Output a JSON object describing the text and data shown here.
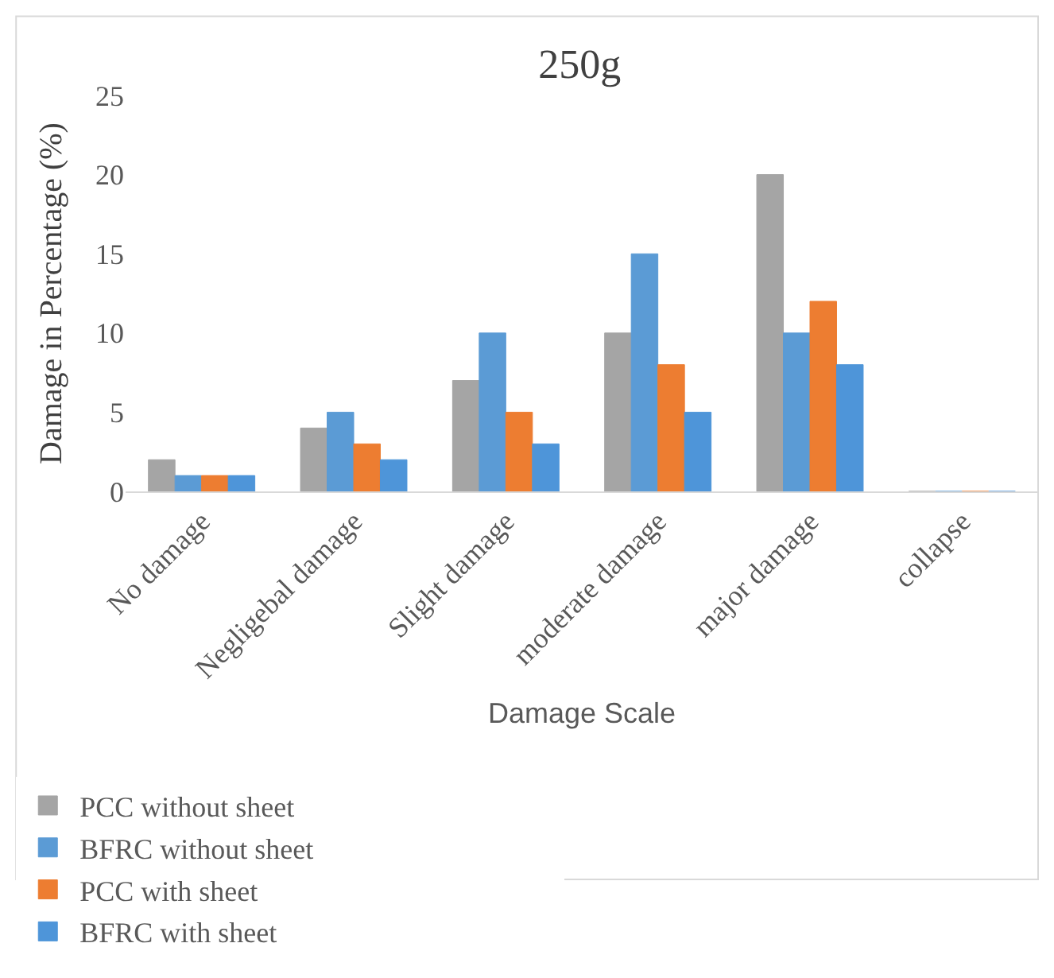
{
  "chart_data": {
    "type": "bar",
    "title": "250g",
    "xlabel": "Damage Scale",
    "ylabel": "Damage in Percentage (%)",
    "categories": [
      "No damage",
      "Negligebal damage",
      "Slight damage",
      "moderate damage",
      "major damage",
      "collapse"
    ],
    "series": [
      {
        "name": "PCC without sheet",
        "color": "#a5a5a5",
        "values": [
          2,
          4,
          7,
          10,
          20,
          0
        ]
      },
      {
        "name": "BFRC without sheet",
        "color": "#5b9bd5",
        "values": [
          1,
          5,
          10,
          15,
          10,
          0
        ]
      },
      {
        "name": "PCC with sheet",
        "color": "#ed7d31",
        "values": [
          1,
          3,
          5,
          8,
          12,
          0
        ]
      },
      {
        "name": "BFRC with sheet",
        "color": "#4e95d9",
        "values": [
          1,
          2,
          3,
          5,
          8,
          0
        ]
      }
    ],
    "ylim": [
      0,
      25
    ],
    "yticks": [
      0,
      5,
      10,
      15,
      20,
      25
    ],
    "grid": false,
    "legend": "bottom"
  }
}
